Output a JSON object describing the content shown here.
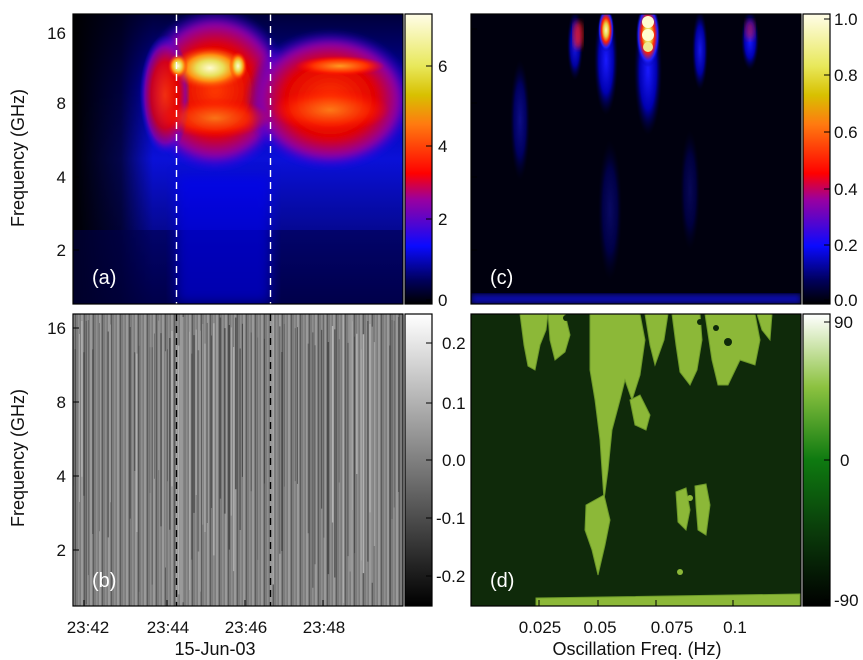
{
  "chart_data": [
    {
      "panel": "(a)",
      "type": "heatmap",
      "ylabel": "Frequency (GHz)",
      "yticks": [
        "16",
        "8",
        "4",
        "2"
      ],
      "xticks": [
        "23:42",
        "23:44",
        "23:46",
        "23:48"
      ],
      "colorbar": {
        "ticks": [
          "0",
          "2",
          "4",
          "6"
        ],
        "range": [
          0,
          7.2
        ],
        "colormap": [
          "#000000",
          "#0a0aff",
          "#ff0000",
          "#ffd400",
          "#fffde0"
        ]
      },
      "markers": [
        "23:44:10",
        "23:46:25"
      ]
    },
    {
      "panel": "(b)",
      "type": "heatmap",
      "ylabel": "Frequency (GHz)",
      "yticks": [
        "16",
        "8",
        "4",
        "2"
      ],
      "xticks": [
        "23:42",
        "23:44",
        "23:46",
        "23:48"
      ],
      "xlabel": "15-Jun-03",
      "colorbar": {
        "ticks": [
          "0.2",
          "0.1",
          "0.0",
          "-0.1",
          "-0.2"
        ],
        "range": [
          -0.25,
          0.25
        ],
        "colormap": [
          "#000000",
          "#ffffff"
        ]
      }
    },
    {
      "panel": "(c)",
      "type": "heatmap",
      "colorbar": {
        "ticks": [
          "1.0",
          "0.8",
          "0.6",
          "0.4",
          "0.2",
          "0.0"
        ],
        "range": [
          0,
          1.0
        ],
        "colormap": [
          "#000000",
          "#0a0aff",
          "#ff0000",
          "#ffd400",
          "#fffde0"
        ]
      }
    },
    {
      "panel": "(d)",
      "type": "heatmap",
      "xlabel": "Oscillation Freq. (Hz)",
      "xticks": [
        "0.025",
        "0.05",
        "0.075",
        "0.1"
      ],
      "colorbar": {
        "ticks": [
          "90",
          "0",
          "-90"
        ],
        "range": [
          -90,
          90
        ],
        "colormap": [
          "#0f2a0a",
          "#9ac43a",
          "#ffffff"
        ]
      }
    }
  ]
}
